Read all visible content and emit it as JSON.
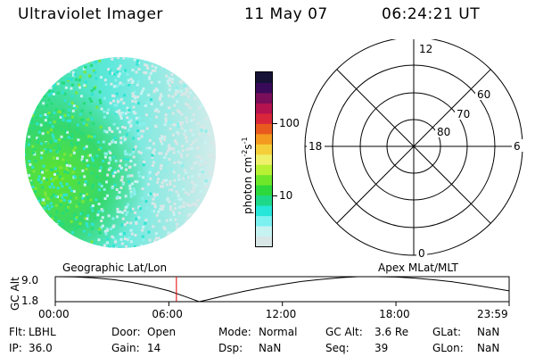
{
  "header": {
    "instrument": "Ultraviolet Imager",
    "date": "11 May 07",
    "time": "06:24:21 UT"
  },
  "colorbar": {
    "unit_main": "photon cm",
    "unit_exp1": "-2",
    "unit_mid": "s",
    "unit_exp2": "-1",
    "tick_labels": [
      "100",
      "10"
    ],
    "tick_values": [
      100,
      10
    ],
    "range": [
      2,
      500
    ],
    "scale": "log",
    "colors": [
      "#d8e6e6",
      "#c7f2f2",
      "#7df0f0",
      "#26e6d9",
      "#1ed88a",
      "#2cd83c",
      "#6ee62a",
      "#b8f034",
      "#eef06a",
      "#f5cf3a",
      "#f39a1f",
      "#e85a1e",
      "#d9263a",
      "#b5134f",
      "#7a0e5a",
      "#3a0a5a",
      "#151236"
    ]
  },
  "polar_plot": {
    "mlt_labels": {
      "top": "12",
      "left": "18",
      "right": "6",
      "bottom": "0"
    },
    "lat_labels": [
      "60",
      "70",
      "80"
    ]
  },
  "timeline": {
    "left_title": "Geographic Lat/Lon",
    "right_title": "Apex MLat/MLT",
    "ylabel": "GC Alt",
    "yticks": [
      "9.0",
      "1.8"
    ],
    "xticks": [
      "00:00",
      "06:00",
      "12:00",
      "18:00",
      "23:59"
    ]
  },
  "chart_data": {
    "type": "line",
    "title": "",
    "xlabel": "",
    "ylabel": "GC Alt",
    "x_range_hours": [
      0,
      23.98
    ],
    "ylim": [
      1.8,
      9.0
    ],
    "series": [
      {
        "x": [
          0,
          1,
          2,
          3,
          4,
          5,
          6,
          7,
          7.6,
          8,
          9,
          10,
          11,
          12,
          13,
          14,
          15,
          16,
          17,
          18,
          19,
          20,
          21,
          22,
          23,
          23.98
        ],
        "values": [
          9.0,
          8.95,
          8.7,
          8.2,
          7.4,
          6.3,
          4.9,
          3.0,
          1.8,
          2.3,
          3.6,
          4.8,
          5.9,
          6.8,
          7.6,
          8.2,
          8.7,
          9.0,
          9.0,
          8.9,
          8.6,
          8.1,
          7.5,
          6.7,
          5.8,
          4.9
        ]
      }
    ],
    "current_time_hours": 6.4
  },
  "footer": {
    "row1": [
      {
        "label": "Flt:",
        "value": "LBHL"
      },
      {
        "label": "Door:",
        "value": "Open"
      },
      {
        "label": "Mode:",
        "value": "Normal"
      },
      {
        "label": "GC Alt:",
        "value": "3.6 Re"
      },
      {
        "label": "GLat:",
        "value": "NaN"
      }
    ],
    "row2": [
      {
        "label": "IP:",
        "value": "36.0"
      },
      {
        "label": "Gain:",
        "value": "14"
      },
      {
        "label": "Dsp:",
        "value": "NaN"
      },
      {
        "label": "Seq:",
        "value": "39"
      },
      {
        "label": "GLon:",
        "value": "NaN"
      }
    ]
  }
}
